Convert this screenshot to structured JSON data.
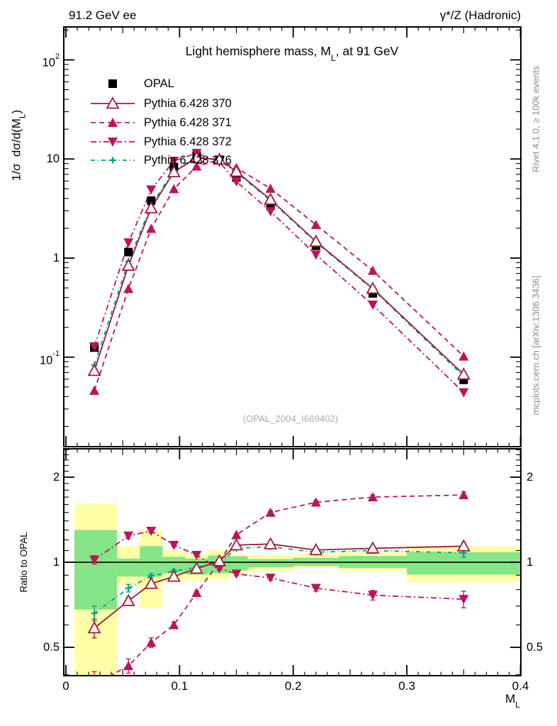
{
  "header": {
    "left": "91.2 GeV ee",
    "right": "γ*/Z (Hadronic)"
  },
  "side_notes": {
    "top": "Rivet 4.1.0, ≥ 100k events",
    "bottom": "mcplots.cern.ch [arXiv:1306.3436]"
  },
  "watermark": "(OPAL_2004_I669402)",
  "labels": {
    "title_pre": "Light hemisphere mass, M",
    "title_sub": "L",
    "title_post": ", at 91 GeV",
    "ylabel_pre": "1/σ  dσ/d(M",
    "ylabel_sub": "L",
    "ylabel_post": ")",
    "ratio_ylabel": "Ratio to OPAL",
    "xlabel_main": "M",
    "xlabel_sub": "L"
  },
  "colors": {
    "p370": "#9e1b38",
    "p371": "#bb155a",
    "p372": "#bb155a",
    "p376": "#00a08a",
    "data": "#000000",
    "band_yellow": "#ffffa8",
    "band_green": "#86e586",
    "gray_text": "#8c8c8c"
  },
  "chart_data": {
    "type": "line",
    "title": "Light hemisphere mass, M_L, at 91 GeV",
    "xlabel": "M_L",
    "xlim": [
      0,
      0.4
    ],
    "grid": false,
    "legend_position": "top-left",
    "x": [
      0.025,
      0.055,
      0.075,
      0.095,
      0.115,
      0.135,
      0.15,
      0.18,
      0.22,
      0.27,
      0.35
    ],
    "bin_edges": [
      0.0075,
      0.045,
      0.065,
      0.085,
      0.105,
      0.125,
      0.145,
      0.16,
      0.2,
      0.24,
      0.3,
      0.4
    ],
    "xticks": [
      {
        "v": 0,
        "label": "0"
      },
      {
        "v": 0.1,
        "label": "0.1"
      },
      {
        "v": 0.2,
        "label": "0.2"
      },
      {
        "v": 0.3,
        "label": "0.3"
      },
      {
        "v": 0.4,
        "label": "0.4"
      }
    ],
    "main_panel": {
      "ylabel": "1/σ dσ/d(M_L)",
      "yscale": "log",
      "ylim": [
        0.0125,
        215
      ],
      "yticks": [
        {
          "v": 100,
          "base": "10",
          "sup": "2"
        },
        {
          "v": 10,
          "base": "10",
          "sup": ""
        },
        {
          "v": 1,
          "base": "1",
          "sup": ""
        },
        {
          "v": 0.1,
          "base": "10",
          "sup": "-1"
        }
      ],
      "series": [
        {
          "name": "OPAL",
          "kind": "data",
          "color": "#000000",
          "dash": "",
          "marker": "square",
          "values": [
            0.125,
            1.15,
            3.8,
            8.3,
            10.8,
            9.8,
            6.5,
            3.36,
            1.33,
            0.44,
            0.059
          ],
          "errors": [
            0.006,
            0.04,
            0.1,
            0.15,
            0.15,
            0.15,
            0.12,
            0.06,
            0.03,
            0.015,
            0.004
          ]
        },
        {
          "name": "Pythia 6.428 370",
          "kind": "mc",
          "color": "#9e1b38",
          "dash": "",
          "marker": "triangle-open",
          "values": [
            0.073,
            0.84,
            3.19,
            7.39,
            10.26,
            9.9,
            7.48,
            3.9,
            1.47,
            0.493,
            0.067
          ]
        },
        {
          "name": "Pythia 6.428 371",
          "kind": "mc",
          "color": "#bb155a",
          "dash": "7 5",
          "marker": "triangle-up",
          "values": [
            0.046,
            0.49,
            1.98,
            4.98,
            8.42,
            9.8,
            8.13,
            5.04,
            2.17,
            0.748,
            0.102
          ]
        },
        {
          "name": "Pythia 6.428 372",
          "kind": "mc",
          "color": "#bb155a",
          "dash": "8 4 2 4",
          "marker": "triangle-down",
          "values": [
            0.128,
            1.43,
            4.9,
            9.55,
            11.45,
            9.31,
            5.92,
            2.96,
            1.08,
            0.337,
            0.044
          ]
        },
        {
          "name": "Pythia 6.428 376",
          "kind": "mc",
          "color": "#00a08a",
          "dash": "6 4 1 4",
          "marker": "plus",
          "values": [
            0.083,
            0.93,
            3.4,
            7.72,
            10.37,
            9.7,
            7.28,
            3.81,
            1.44,
            0.484,
            0.064
          ]
        }
      ]
    },
    "ratio_panel": {
      "ylabel": "Ratio to OPAL",
      "yscale": "log",
      "ylim": [
        0.397,
        2.52
      ],
      "reference_line": 1,
      "yticks": [
        {
          "v": 2,
          "label": "2"
        },
        {
          "v": 1,
          "label": "1"
        },
        {
          "v": 0.5,
          "label": "0.5"
        }
      ],
      "bands": {
        "yellow": {
          "color": "#ffffa8",
          "lo": [
            0.3,
            0.83,
            0.69,
            0.86,
            0.86,
            0.87,
            0.91,
            0.93,
            0.955,
            0.93,
            0.85
          ],
          "hi": [
            1.61,
            1.14,
            1.3,
            1.1,
            1.06,
            1.11,
            1.07,
            1.06,
            1.07,
            1.085,
            1.14
          ]
        },
        "green": {
          "color": "#86e586",
          "lo": [
            0.68,
            0.89,
            0.89,
            0.915,
            0.905,
            0.915,
            0.935,
            0.96,
            0.97,
            0.955,
            0.905
          ],
          "hi": [
            1.3,
            1.03,
            1.14,
            1.045,
            1.03,
            1.055,
            1.05,
            1.027,
            1.037,
            1.053,
            1.085
          ]
        }
      },
      "series": [
        {
          "name": "Pythia 6.428 370",
          "color": "#9e1b38",
          "dash": "",
          "marker": "triangle-open",
          "values": [
            0.585,
            0.73,
            0.84,
            0.89,
            0.95,
            1.01,
            1.15,
            1.16,
            1.105,
            1.12,
            1.14
          ],
          "errors": [
            0.045,
            0.022,
            0.015,
            0.012,
            0.01,
            0.01,
            0.012,
            0.012,
            0.015,
            0.02,
            0.035
          ]
        },
        {
          "name": "Pythia 6.428 371",
          "color": "#bb155a",
          "dash": "7 5",
          "marker": "triangle-up",
          "values": [
            0.37,
            0.43,
            0.52,
            0.6,
            0.78,
            1.0,
            1.25,
            1.5,
            1.63,
            1.7,
            1.73
          ],
          "errors": [
            0.04,
            0.025,
            0.02,
            0.015,
            0.012,
            0.012,
            0.015,
            0.02,
            0.025,
            0.03,
            0.045
          ]
        },
        {
          "name": "Pythia 6.428 372",
          "color": "#bb155a",
          "dash": "8 4 2 4",
          "marker": "triangle-down",
          "values": [
            1.02,
            1.24,
            1.29,
            1.15,
            1.06,
            0.95,
            0.91,
            0.88,
            0.81,
            0.765,
            0.74
          ],
          "errors": [
            0.035,
            0.03,
            0.02,
            0.015,
            0.012,
            0.012,
            0.015,
            0.015,
            0.02,
            0.03,
            0.05
          ]
        },
        {
          "name": "Pythia 6.428 376",
          "color": "#00a08a",
          "dash": "6 4 1 4",
          "marker": "plus",
          "values": [
            0.66,
            0.81,
            0.895,
            0.93,
            0.96,
            0.99,
            1.12,
            1.135,
            1.085,
            1.1,
            1.08
          ],
          "errors": [
            0.04,
            0.025,
            0.015,
            0.012,
            0.01,
            0.01,
            0.012,
            0.015,
            0.02,
            0.025,
            0.04
          ]
        }
      ]
    }
  }
}
